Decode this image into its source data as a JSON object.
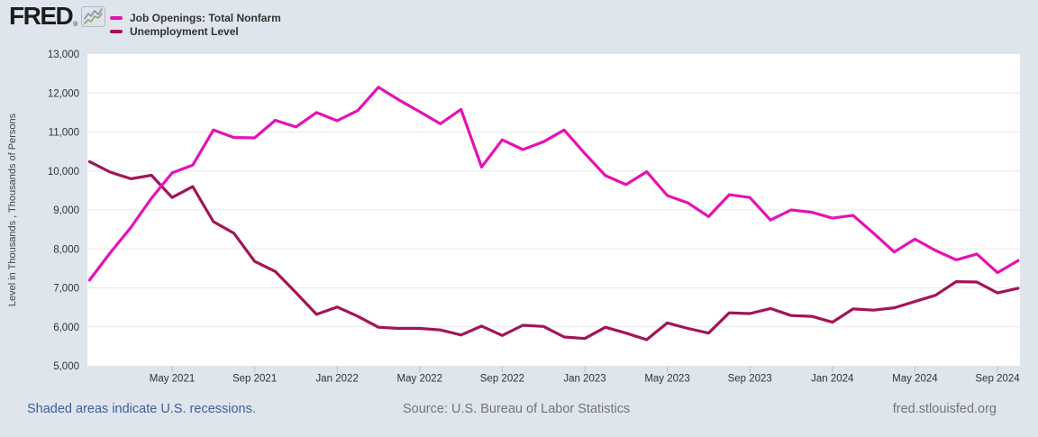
{
  "brand": {
    "name": "FRED",
    "registered": "®",
    "icon": "fred-sparkline-logo"
  },
  "legend": {
    "items": [
      {
        "label": "Job Openings: Total Nonfarm",
        "color": "#e412b5"
      },
      {
        "label": "Unemployment Level",
        "color": "#a31458"
      }
    ]
  },
  "footer": {
    "recessions_note": "Shaded areas indicate U.S. recessions.",
    "source": "Source: U.S. Bureau of Labor Statistics",
    "site": "fred.stlouisfed.org"
  },
  "colors": {
    "page_bg": "#dee5ec",
    "plot_bg": "#ffffff",
    "gridline": "#e7e7e7",
    "tick_mark": "#b3c3d6",
    "axis_text": "#333333",
    "ylabel_text": "#444444",
    "logo_black": "#1d1d1d",
    "footer_link_blue": "#3f5e99",
    "footer_gray": "#757575"
  },
  "chart_data": {
    "type": "line",
    "title": "",
    "xlabel": "",
    "ylabel": "Level in Thousands , Thousands of Persons",
    "ylim": [
      5000,
      13000
    ],
    "grid": "horizontal",
    "frequency": "monthly",
    "start_month": "Jan 2021",
    "end_month": "Oct 2024",
    "yticks": [
      {
        "value": 13000,
        "label": "13,000"
      },
      {
        "value": 12000,
        "label": "12,000"
      },
      {
        "value": 11000,
        "label": "11,000"
      },
      {
        "value": 10000,
        "label": "10,000"
      },
      {
        "value": 9000,
        "label": "9,000"
      },
      {
        "value": 8000,
        "label": "8,000"
      },
      {
        "value": 7000,
        "label": "7,000"
      },
      {
        "value": 6000,
        "label": "6,000"
      },
      {
        "value": 5000,
        "label": "5,000"
      }
    ],
    "xticks": [
      {
        "month_index": 4,
        "label": "May 2021"
      },
      {
        "month_index": 8,
        "label": "Sep 2021"
      },
      {
        "month_index": 12,
        "label": "Jan 2022"
      },
      {
        "month_index": 16,
        "label": "May 2022"
      },
      {
        "month_index": 20,
        "label": "Sep 2022"
      },
      {
        "month_index": 24,
        "label": "Jan 2023"
      },
      {
        "month_index": 28,
        "label": "May 2023"
      },
      {
        "month_index": 32,
        "label": "Sep 2023"
      },
      {
        "month_index": 36,
        "label": "Jan 2024"
      },
      {
        "month_index": 40,
        "label": "May 2024"
      },
      {
        "month_index": 44,
        "label": "Sep 2024"
      }
    ],
    "series": [
      {
        "name": "Job Openings: Total Nonfarm",
        "color": "#e412b5",
        "values": [
          7200,
          7900,
          8550,
          9300,
          9950,
          10150,
          11050,
          10860,
          10850,
          11300,
          11130,
          11500,
          11290,
          11550,
          12150,
          11820,
          11520,
          11210,
          11580,
          10100,
          10800,
          10550,
          10750,
          11050,
          10450,
          9880,
          9650,
          9980,
          9370,
          9180,
          8830,
          9390,
          9320,
          8740,
          9000,
          8940,
          8790,
          8860,
          8400,
          7920,
          8250,
          7960,
          7720,
          7870,
          7390,
          7700
        ]
      },
      {
        "name": "Unemployment Level",
        "color": "#a31458",
        "values": [
          10240,
          9970,
          9800,
          9890,
          9320,
          9600,
          8700,
          8400,
          7680,
          7420,
          6880,
          6320,
          6510,
          6270,
          5990,
          5960,
          5960,
          5920,
          5790,
          6020,
          5780,
          6040,
          6010,
          5740,
          5700,
          5990,
          5840,
          5670,
          6100,
          5960,
          5840,
          6360,
          6340,
          6470,
          6290,
          6270,
          6120,
          6460,
          6430,
          6490,
          6650,
          6810,
          7160,
          7150,
          6870,
          6990
        ]
      }
    ]
  }
}
